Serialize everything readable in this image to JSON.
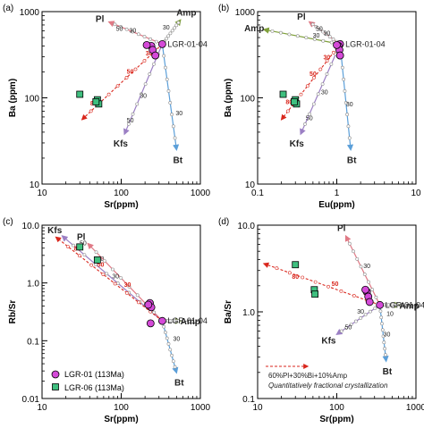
{
  "colors": {
    "pl": "#e07a86",
    "amp": "#7fa03a",
    "bt": "#5b9fd9",
    "kfs": "#9b7fc4",
    "mix": "#d9261c",
    "lgr01_fill": "#d44ad8",
    "lgr06_fill": "#3fbf7f",
    "axis": "#000000"
  },
  "legend": {
    "lgr01": "LGR-01 (113Ma)",
    "lgr06": "LGR-06 (113Ma)"
  },
  "note": {
    "line1": "60%Pl+30%Bi+10%Amp",
    "line2": "Quantitatively fractional crystallization"
  },
  "chart_data": [
    {
      "panel": "(a)",
      "type": "scatter",
      "xscale": "log",
      "yscale": "log",
      "xlim": [
        10,
        1000
      ],
      "ylim": [
        10,
        1000
      ],
      "xticks": [
        10,
        100,
        1000
      ],
      "yticks": [
        10,
        100,
        1000
      ],
      "xlabel": "Sr(ppm)",
      "ylabel": "Ba (ppm)",
      "start_label": "LGR-01-04",
      "start": [
        330,
        420
      ],
      "vectors": [
        {
          "name": "Pl",
          "end": [
            70,
            760
          ],
          "labels": [
            {
              "t": "50",
              "at": [
                95,
                600
              ]
            },
            {
              "t": "30",
              "at": [
                140,
                570
              ]
            }
          ]
        },
        {
          "name": "Amp",
          "end": [
            560,
            800
          ],
          "labels": [
            {
              "t": "30",
              "at": [
                370,
                620
              ]
            }
          ]
        },
        {
          "name": "Bt",
          "end": [
            500,
            25
          ],
          "labels": [
            {
              "t": "30",
              "at": [
                540,
                63
              ]
            }
          ]
        },
        {
          "name": "Kfs",
          "end": [
            110,
            38
          ],
          "labels": [
            {
              "t": "30",
              "at": [
                190,
                100
              ]
            },
            {
              "t": "50",
              "at": [
                130,
                52
              ]
            }
          ]
        },
        {
          "name": "mix",
          "end": [
            32,
            56
          ],
          "labels": [
            {
              "t": "30",
              "at": [
                225,
                310
              ]
            },
            {
              "t": "50",
              "at": [
                130,
                190
              ]
            },
            {
              "t": "80",
              "at": [
                45,
                82
              ]
            }
          ]
        }
      ],
      "points": {
        "lgr01": [
          [
            330,
            420
          ],
          [
            240,
            400
          ],
          [
            250,
            360
          ],
          [
            270,
            310
          ],
          [
            210,
            410
          ]
        ],
        "lgr06": [
          [
            30,
            110
          ],
          [
            50,
            95
          ],
          [
            52,
            85
          ],
          [
            48,
            90
          ]
        ]
      }
    },
    {
      "panel": "(b)",
      "type": "scatter",
      "xscale": "log",
      "yscale": "log",
      "xlim": [
        0.1,
        10
      ],
      "ylim": [
        10,
        1000
      ],
      "xticks": [
        0.1,
        1,
        10
      ],
      "yticks": [
        10,
        100,
        1000
      ],
      "xlabel": "Eu(ppm)",
      "ylabel": "Ba (ppm)",
      "start_label": "LGR-01-04",
      "start": [
        1.1,
        420
      ],
      "vectors": [
        {
          "name": "Pl",
          "end": [
            0.45,
            760
          ],
          "labels": [
            {
              "t": "50",
              "at": [
                0.6,
                600
              ]
            },
            {
              "t": "30",
              "at": [
                0.75,
                530
              ]
            }
          ]
        },
        {
          "name": "Amp",
          "end": [
            0.12,
            620
          ],
          "labels": [
            {
              "t": "30",
              "at": [
                0.55,
                500
              ]
            }
          ]
        },
        {
          "name": "Bt",
          "end": [
            1.5,
            25
          ],
          "labels": [
            {
              "t": "30",
              "at": [
                1.45,
                80
              ]
            }
          ]
        },
        {
          "name": "Kfs",
          "end": [
            0.35,
            38
          ],
          "labels": [
            {
              "t": "30",
              "at": [
                0.7,
                110
              ]
            },
            {
              "t": "50",
              "at": [
                0.45,
                55
              ]
            }
          ]
        },
        {
          "name": "mix",
          "end": [
            0.2,
            56
          ],
          "labels": [
            {
              "t": "30",
              "at": [
                0.75,
                280
              ]
            },
            {
              "t": "50",
              "at": [
                0.5,
                180
              ]
            },
            {
              "t": "80",
              "at": [
                0.25,
                85
              ]
            }
          ]
        }
      ],
      "points": {
        "lgr01": [
          [
            1.1,
            420
          ],
          [
            1.05,
            400
          ],
          [
            1.08,
            360
          ],
          [
            1.1,
            310
          ],
          [
            1.0,
            410
          ]
        ],
        "lgr06": [
          [
            0.21,
            110
          ],
          [
            0.3,
            95
          ],
          [
            0.31,
            85
          ],
          [
            0.29,
            90
          ]
        ]
      }
    },
    {
      "panel": "(c)",
      "type": "scatter",
      "xscale": "log",
      "yscale": "log",
      "xlim": [
        10,
        1000
      ],
      "ylim": [
        0.01,
        10
      ],
      "xticks": [
        10,
        100,
        1000
      ],
      "yticks": [
        0.01,
        0.1,
        1.0,
        10.0
      ],
      "ytick_labels": [
        "0.01",
        "0.1",
        "1.0",
        "10.0"
      ],
      "xlabel": "Sr(ppm)",
      "ylabel": "Rb/Sr",
      "start_label": "LGR-01-04",
      "start": [
        330,
        0.22
      ],
      "vectors": [
        {
          "name": "Kfs",
          "end": [
            18,
            6.5
          ],
          "labels": [
            {
              "t": "50",
              "at": [
                33,
                4.5
              ]
            },
            {
              "t": "30",
              "at": [
                55,
                2.4
              ]
            }
          ]
        },
        {
          "name": "Pl",
          "end": [
            38,
            4.8
          ],
          "labels": [
            {
              "t": "30",
              "at": [
                85,
                1.2
              ]
            }
          ]
        },
        {
          "name": "Amp",
          "end": [
            560,
            0.22
          ],
          "labels": []
        },
        {
          "name": "Bt",
          "end": [
            500,
            0.028
          ],
          "labels": [
            {
              "t": "30",
              "at": [
                500,
                0.1
              ]
            }
          ]
        },
        {
          "name": "mix",
          "end": [
            15,
            6.2
          ],
          "labels": [
            {
              "t": "30",
              "at": [
                120,
                0.85
              ]
            },
            {
              "t": "50",
              "at": [
                55,
                1.9
              ]
            },
            {
              "t": "80",
              "at": [
                28,
                3.6
              ]
            }
          ]
        }
      ],
      "points": {
        "lgr01": [
          [
            330,
            0.22
          ],
          [
            230,
            0.45
          ],
          [
            240,
            0.38
          ],
          [
            220,
            0.42
          ],
          [
            235,
            0.2
          ]
        ],
        "lgr06": [
          [
            30,
            4.2
          ],
          [
            50,
            2.5
          ]
        ]
      }
    },
    {
      "panel": "(d)",
      "type": "scatter",
      "xscale": "log",
      "yscale": "log",
      "xlim": [
        10,
        1000
      ],
      "ylim": [
        0.1,
        10
      ],
      "xticks": [
        10,
        100,
        1000
      ],
      "yticks": [
        0.1,
        1.0,
        10.0
      ],
      "ytick_labels": [
        "0.1",
        "1.0",
        "10.0"
      ],
      "xlabel": "Sr(ppm)",
      "ylabel": "Ba/Sr",
      "start_label": "LGR-01-04",
      "start": [
        350,
        1.2
      ],
      "vectors": [
        {
          "name": "Pl",
          "end": [
            130,
            7.5
          ],
          "labels": [
            {
              "t": "30",
              "at": [
                240,
                3.2
              ]
            }
          ]
        },
        {
          "name": "Amp",
          "end": [
            620,
            1.2
          ],
          "labels": []
        },
        {
          "name": "Bt",
          "end": [
            420,
            0.27
          ],
          "labels": [
            {
              "t": "10",
              "at": [
                470,
                0.9
              ]
            },
            {
              "t": "30",
              "at": [
                430,
                0.52
              ]
            }
          ]
        },
        {
          "name": "Kfs",
          "end": [
            100,
            0.55
          ],
          "labels": [
            {
              "t": "30",
              "at": [
                200,
                0.95
              ]
            },
            {
              "t": "50",
              "at": [
                140,
                0.63
              ]
            }
          ]
        },
        {
          "name": "mix",
          "end": [
            12,
            3.6
          ],
          "labels": [
            {
              "t": "30",
              "at": [
                240,
                1.55
              ]
            },
            {
              "t": "50",
              "at": [
                95,
                2.0
              ]
            },
            {
              "t": "80",
              "at": [
                30,
                2.4
              ]
            }
          ]
        }
      ],
      "points": {
        "lgr01": [
          [
            350,
            1.2
          ],
          [
            240,
            1.7
          ],
          [
            250,
            1.5
          ],
          [
            260,
            1.3
          ],
          [
            230,
            1.8
          ]
        ],
        "lgr06": [
          [
            30,
            3.5
          ],
          [
            52,
            1.8
          ],
          [
            53,
            1.6
          ]
        ]
      }
    }
  ]
}
